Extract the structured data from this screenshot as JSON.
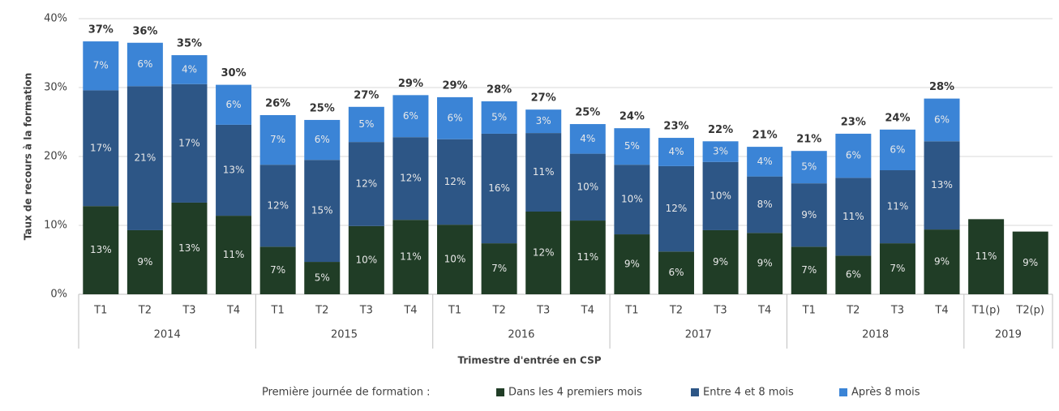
{
  "chart_data": {
    "type": "stacked_bar",
    "y_label": "Taux de recours à la formation",
    "x_label": "Trimestre d'entrée en CSP",
    "legend_title": "Première journée de formation :",
    "legend_position": "bottom",
    "grid": true,
    "groups": [
      {
        "name": "2014",
        "categories": [
          "T1",
          "T2",
          "T3",
          "T4"
        ]
      },
      {
        "name": "2015",
        "categories": [
          "T1",
          "T2",
          "T3",
          "T4"
        ]
      },
      {
        "name": "2016",
        "categories": [
          "T1",
          "T2",
          "T3",
          "T4"
        ]
      },
      {
        "name": "2017",
        "categories": [
          "T1",
          "T2",
          "T3",
          "T4"
        ]
      },
      {
        "name": "2018",
        "categories": [
          "T1",
          "T2",
          "T3",
          "T4"
        ]
      },
      {
        "name": "2019",
        "categories": [
          "T1(p)",
          "T2(p)"
        ]
      }
    ],
    "ylim": [
      0,
      40
    ],
    "yticks": [
      {
        "value": 0,
        "label": "0%"
      },
      {
        "value": 10,
        "label": "10%"
      },
      {
        "value": 20,
        "label": "20%"
      },
      {
        "value": 30,
        "label": "30%"
      },
      {
        "value": 40,
        "label": "40%"
      }
    ],
    "series": [
      {
        "name": "Dans les 4 premiers mois",
        "color": "#203d26",
        "values": [
          12.8,
          9.3,
          13.3,
          11.4,
          6.9,
          4.7,
          9.9,
          10.8,
          10.1,
          7.4,
          12,
          10.7,
          8.7,
          6.2,
          9.3,
          8.9,
          6.9,
          5.6,
          7.4,
          9.4,
          10.9,
          9.1
        ],
        "value_labels": [
          "13%",
          "9%",
          "13%",
          "11%",
          "7%",
          "5%",
          "10%",
          "11%",
          "10%",
          "7%",
          "12%",
          "11%",
          "9%",
          "6%",
          "9%",
          "9%",
          "7%",
          "6%",
          "7%",
          "9%",
          "11%",
          "9%"
        ]
      },
      {
        "name": "Entre 4 et 8 mois",
        "color": "#2d5686",
        "values": [
          16.8,
          20.9,
          17.2,
          13.2,
          11.9,
          14.8,
          12.2,
          12,
          12.4,
          15.9,
          11.4,
          9.7,
          10.1,
          12.4,
          9.9,
          8.2,
          9.2,
          11.3,
          10.6,
          12.8,
          null,
          null
        ],
        "value_labels": [
          "17%",
          "21%",
          "17%",
          "13%",
          "12%",
          "15%",
          "12%",
          "12%",
          "12%",
          "16%",
          "11%",
          "10%",
          "10%",
          "12%",
          "10%",
          "8%",
          "9%",
          "11%",
          "11%",
          "13%",
          null,
          null
        ]
      },
      {
        "name": "Après 8 mois",
        "color": "#3b84d6",
        "values": [
          7.1,
          6.3,
          4.2,
          5.8,
          7.2,
          5.8,
          5.1,
          6.1,
          6.1,
          4.7,
          3.4,
          4.3,
          5.3,
          4.1,
          3,
          4.3,
          4.7,
          6.4,
          5.9,
          6.2,
          null,
          null
        ],
        "value_labels": [
          "7%",
          "6%",
          "4%",
          "6%",
          "7%",
          "6%",
          "5%",
          "6%",
          "6%",
          "5%",
          "3%",
          "4%",
          "5%",
          "4%",
          "3%",
          "4%",
          "5%",
          "6%",
          "6%",
          "6%",
          null,
          null
        ]
      }
    ],
    "totals": [
      36.7,
      36.5,
      34.7,
      30.4,
      26,
      25.3,
      27.2,
      28.9,
      28.6,
      28,
      26.8,
      24.7,
      24.1,
      22.7,
      22.2,
      21.4,
      20.8,
      23.3,
      23.9,
      28.4,
      null,
      null
    ],
    "total_labels": [
      "37%",
      "36%",
      "35%",
      "30%",
      "26%",
      "25%",
      "27%",
      "29%",
      "29%",
      "28%",
      "27%",
      "25%",
      "24%",
      "23%",
      "22%",
      "21%",
      "21%",
      "23%",
      "24%",
      "28%",
      null,
      null
    ]
  }
}
